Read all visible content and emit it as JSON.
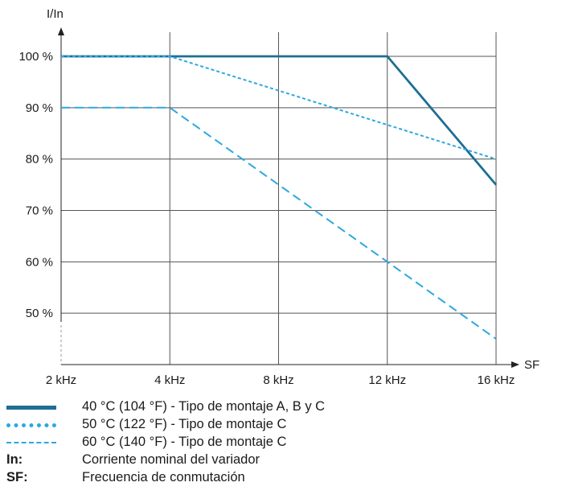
{
  "chart_data": {
    "type": "line",
    "ylabel": "I/In",
    "xlabel": "SF",
    "x_ticks": [
      "2 kHz",
      "4 kHz",
      "8 kHz",
      "12 kHz",
      "16 kHz"
    ],
    "y_ticks": [
      "100 %",
      "90 %",
      "80 %",
      "70 %",
      "60 %",
      "50 %"
    ],
    "y_tick_values": [
      100,
      90,
      80,
      70,
      60,
      50
    ],
    "ylim": [
      40,
      100
    ],
    "grid": true,
    "legend_position": "bottom",
    "series": [
      {
        "name": "40 °C (104 °F) - Tipo de montaje A, B y C",
        "style": "solid",
        "color": "#1f6e93",
        "points": [
          [
            "2 kHz",
            100
          ],
          [
            "4 kHz",
            100
          ],
          [
            "12 kHz",
            100
          ],
          [
            "16 kHz",
            75
          ]
        ]
      },
      {
        "name": "50 °C (122 °F) - Tipo de montaje C",
        "style": "dotted",
        "color": "#2ba8e0",
        "points": [
          [
            "2 kHz",
            100
          ],
          [
            "4 kHz",
            100
          ],
          [
            "16 kHz",
            80
          ]
        ]
      },
      {
        "name": "60 °C (140 °F) - Tipo de montaje C",
        "style": "dashed",
        "color": "#2ba8e0",
        "points": [
          [
            "2 kHz",
            90
          ],
          [
            "4 kHz",
            90
          ],
          [
            "12 kHz",
            60
          ],
          [
            "16 kHz",
            45
          ]
        ]
      }
    ]
  },
  "notes": [
    {
      "key": "In:",
      "text": "Corriente nominal del variador"
    },
    {
      "key": "SF:",
      "text": "Frecuencia de conmutación"
    }
  ]
}
